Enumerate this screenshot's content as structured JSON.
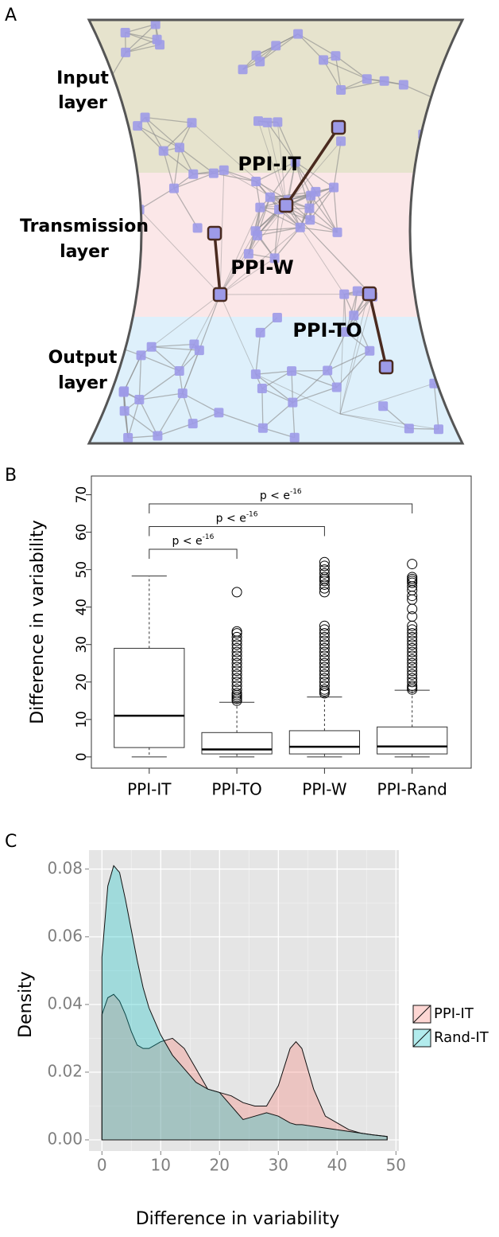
{
  "panel_labels": [
    "A",
    "B",
    "C"
  ],
  "diagram": {
    "layers": [
      {
        "lines": [
          "Input",
          "layer"
        ]
      },
      {
        "lines": [
          "Transmission",
          "layer"
        ]
      },
      {
        "lines": [
          "Output",
          "layer"
        ]
      }
    ],
    "edges": [
      "PPI-IT",
      "PPI-W",
      "PPI-TO"
    ]
  },
  "chart_data": [
    {
      "type": "box",
      "ylabel": "Difference in variability",
      "categories": [
        "PPI-IT",
        "PPI-TO",
        "PPI-W",
        "PPI-Rand"
      ],
      "whisker_low": [
        0,
        0,
        0,
        0
      ],
      "q1": [
        2.5,
        0.8,
        0.8,
        0.8
      ],
      "median": [
        11,
        2,
        2.7,
        2.8
      ],
      "q3": [
        29,
        6.5,
        7,
        8
      ],
      "whisker_high": [
        48.3,
        14.6,
        16,
        17.8
      ],
      "outliers": [
        [],
        [
          15,
          15.5,
          16,
          16.5,
          17,
          18,
          19,
          20,
          21,
          22,
          23,
          24,
          25,
          26,
          27,
          28,
          29,
          30,
          31,
          32,
          33,
          33.5,
          44
        ],
        [
          17,
          17.5,
          18,
          19,
          20,
          21,
          22,
          23,
          24,
          25,
          26,
          27,
          28,
          29,
          30,
          31,
          32,
          33,
          34,
          35,
          44,
          45,
          46,
          47,
          47.5,
          48,
          49,
          50,
          51,
          52
        ],
        [
          18,
          18.5,
          19,
          20,
          21,
          22,
          23,
          24,
          25,
          26,
          27,
          28,
          29,
          30,
          31,
          32,
          33,
          34,
          35,
          37.5,
          39.5,
          42,
          43,
          44.5,
          45.5,
          46.5,
          47,
          47.5,
          48,
          51.5
        ]
      ],
      "annotations": [
        {
          "between": [
            "PPI-IT",
            "PPI-TO"
          ],
          "label": "p < e",
          "superscript": "-16"
        },
        {
          "between": [
            "PPI-IT",
            "PPI-W"
          ],
          "label": "p < e",
          "superscript": "-16"
        },
        {
          "between": [
            "PPI-IT",
            "PPI-Rand"
          ],
          "label": "p < e",
          "superscript": "-16"
        }
      ],
      "ylim": [
        -3,
        75
      ],
      "yticks": [
        0,
        10,
        20,
        30,
        40,
        50,
        60,
        70
      ]
    },
    {
      "type": "density",
      "xlabel": "Difference in variability",
      "ylabel": "Density",
      "x": [
        0,
        1,
        2,
        3,
        4,
        5,
        6,
        7,
        8,
        10,
        12,
        14,
        16,
        18,
        20,
        22,
        24,
        26,
        28,
        30,
        32,
        33,
        34,
        36,
        38,
        40,
        42,
        44,
        46,
        48.5
      ],
      "series": [
        {
          "name": "PPI-IT",
          "color": "#F8766D",
          "alpha": 0.3,
          "values": [
            0.037,
            0.042,
            0.043,
            0.041,
            0.037,
            0.032,
            0.028,
            0.027,
            0.027,
            0.029,
            0.03,
            0.027,
            0.021,
            0.015,
            0.014,
            0.013,
            0.011,
            0.01,
            0.01,
            0.016,
            0.027,
            0.029,
            0.027,
            0.015,
            0.007,
            0.005,
            0.003,
            0.002,
            0.0015,
            0.001
          ]
        },
        {
          "name": "Rand-IT",
          "color": "#00BFC4",
          "alpha": 0.3,
          "values": [
            0.054,
            0.075,
            0.081,
            0.079,
            0.071,
            0.062,
            0.053,
            0.045,
            0.039,
            0.031,
            0.025,
            0.021,
            0.017,
            0.015,
            0.014,
            0.01,
            0.006,
            0.007,
            0.008,
            0.007,
            0.005,
            0.0045,
            0.0045,
            0.004,
            0.0035,
            0.003,
            0.0025,
            0.002,
            0.0015,
            0.001
          ]
        }
      ],
      "xlim": [
        -2.2,
        50.5
      ],
      "ylim": [
        -0.0033,
        0.0856
      ],
      "xticks": [
        0,
        10,
        20,
        30,
        40,
        50
      ],
      "yticks": [
        {
          "value": 0,
          "label": "0.00"
        },
        {
          "value": 0.02,
          "label": "0.02"
        },
        {
          "value": 0.04,
          "label": "0.04"
        },
        {
          "value": 0.06,
          "label": "0.06"
        },
        {
          "value": 0.08,
          "label": "0.08"
        }
      ],
      "grid": true,
      "legend": "right"
    }
  ]
}
